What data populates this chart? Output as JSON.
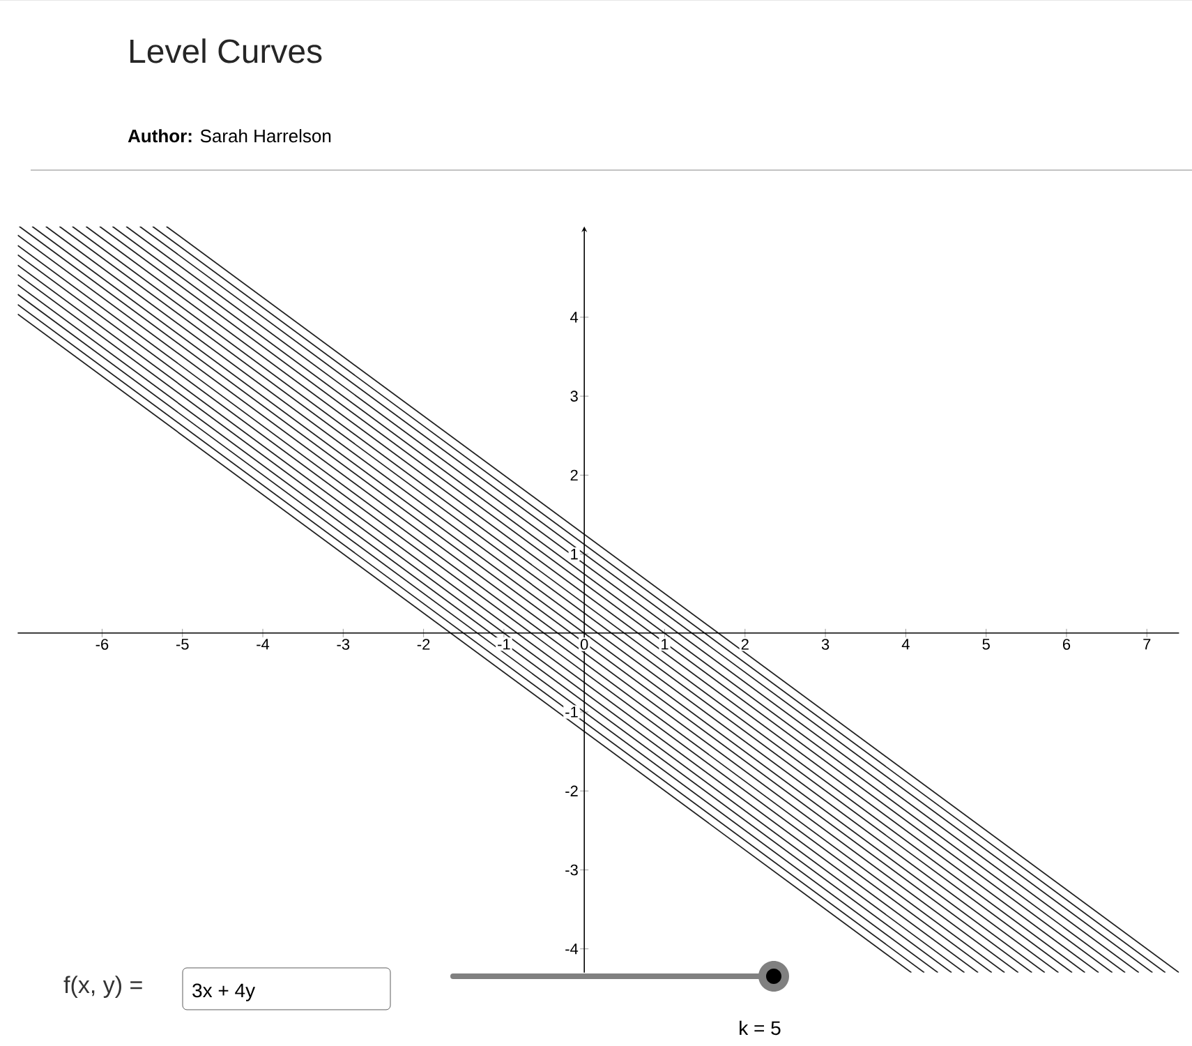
{
  "chart_data": {
    "type": "line",
    "title": "Level Curves",
    "subtitle": "**Author:** Sarah Harrelson",
    "annotations": [
      "f(x, y) =",
      "3x + 4y",
      "k = 5"
    ],
    "xlim": [
      -7.05,
      7.4
    ],
    "ylim": [
      -4.3,
      5.15
    ],
    "xticks": [
      -6,
      -5,
      -4,
      -3,
      -2,
      -1,
      0,
      1,
      2,
      3,
      4,
      5,
      6,
      7
    ],
    "yticks": [
      -4,
      -3,
      -2,
      -1,
      1,
      2,
      3,
      4
    ],
    "grid": false,
    "marker": "none",
    "line_style": "solid",
    "series": [
      {
        "color": "#222222",
        "x": [
          -7.05,
          4.07
        ],
        "values": [
          4.04,
          -4.3
        ]
      },
      {
        "color": "#222222",
        "x": [
          -7.05,
          4.23
        ],
        "values": [
          4.16,
          -4.3
        ]
      },
      {
        "color": "#222222",
        "x": [
          -7.05,
          4.4
        ],
        "values": [
          4.29,
          -4.3
        ]
      },
      {
        "color": "#222222",
        "x": [
          -7.05,
          4.57
        ],
        "values": [
          4.41,
          -4.3
        ]
      },
      {
        "color": "#222222",
        "x": [
          -7.05,
          4.73
        ],
        "values": [
          4.54,
          -4.3
        ]
      },
      {
        "color": "#222222",
        "x": [
          -7.05,
          4.9
        ],
        "values": [
          4.66,
          -4.3
        ]
      },
      {
        "color": "#222222",
        "x": [
          -7.05,
          5.07
        ],
        "values": [
          4.79,
          -4.3
        ]
      },
      {
        "color": "#222222",
        "x": [
          -7.05,
          5.23
        ],
        "values": [
          4.91,
          -4.3
        ]
      },
      {
        "color": "#222222",
        "x": [
          -7.05,
          5.4
        ],
        "values": [
          5.04,
          -4.3
        ]
      },
      {
        "color": "#222222",
        "x": [
          -7.03,
          5.57
        ],
        "values": [
          5.15,
          -4.3
        ]
      },
      {
        "color": "#222222",
        "x": [
          -6.87,
          5.73
        ],
        "values": [
          5.15,
          -4.3
        ]
      },
      {
        "color": "#222222",
        "x": [
          -6.7,
          5.9
        ],
        "values": [
          5.15,
          -4.3
        ]
      },
      {
        "color": "#222222",
        "x": [
          -6.53,
          6.07
        ],
        "values": [
          5.15,
          -4.3
        ]
      },
      {
        "color": "#222222",
        "x": [
          -6.37,
          6.23
        ],
        "values": [
          5.15,
          -4.3
        ]
      },
      {
        "color": "#222222",
        "x": [
          -6.2,
          6.4
        ],
        "values": [
          5.15,
          -4.3
        ]
      },
      {
        "color": "#222222",
        "x": [
          -6.03,
          6.57
        ],
        "values": [
          5.15,
          -4.3
        ]
      },
      {
        "color": "#222222",
        "x": [
          -5.87,
          6.73
        ],
        "values": [
          5.15,
          -4.3
        ]
      },
      {
        "color": "#222222",
        "x": [
          -5.7,
          6.9
        ],
        "values": [
          5.15,
          -4.3
        ]
      },
      {
        "color": "#222222",
        "x": [
          -5.53,
          7.07
        ],
        "values": [
          5.15,
          -4.3
        ]
      },
      {
        "color": "#222222",
        "x": [
          -5.37,
          7.23
        ],
        "values": [
          5.15,
          -4.3
        ]
      },
      {
        "color": "#222222",
        "x": [
          -5.2,
          7.4
        ],
        "values": [
          5.15,
          -4.3
        ]
      }
    ]
  }
}
